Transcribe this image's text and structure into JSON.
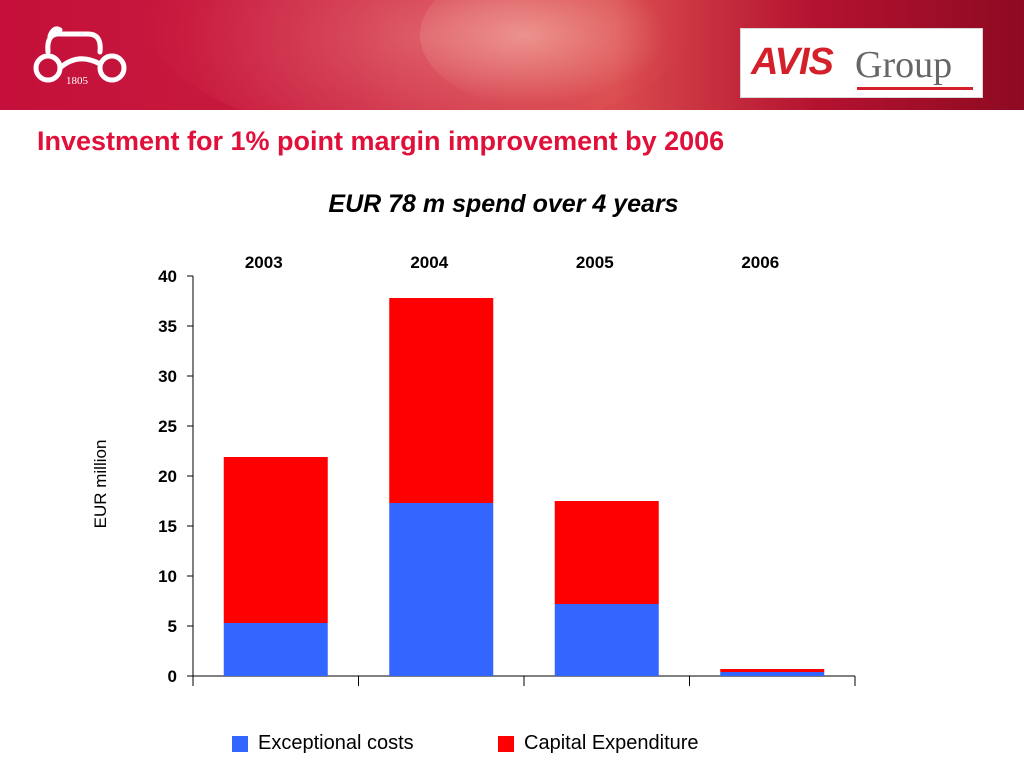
{
  "header": {
    "logo_year": "1805",
    "avis_logo": {
      "brand": "AVIS",
      "suffix": "Group"
    }
  },
  "slide_title": "Investment for 1% point margin improvement by 2006",
  "chart_data": {
    "type": "bar",
    "stacked": true,
    "title": "EUR 78 m spend over 4 years",
    "categories": [
      "2003",
      "2004",
      "2005",
      "2006"
    ],
    "category_label_position": "top",
    "ylabel": "EUR million",
    "xlabel": "",
    "ylim": [
      0,
      40
    ],
    "yticks": [
      0,
      5,
      10,
      15,
      20,
      25,
      30,
      35,
      40
    ],
    "grid": false,
    "legend_position": "bottom",
    "series": [
      {
        "name": "Exceptional costs",
        "color": "#3366ff",
        "values": [
          5.3,
          17.3,
          7.2,
          0.4
        ]
      },
      {
        "name": "Capital Expenditure",
        "color": "#ff0000",
        "values": [
          16.6,
          20.5,
          10.3,
          0.3
        ]
      }
    ]
  }
}
